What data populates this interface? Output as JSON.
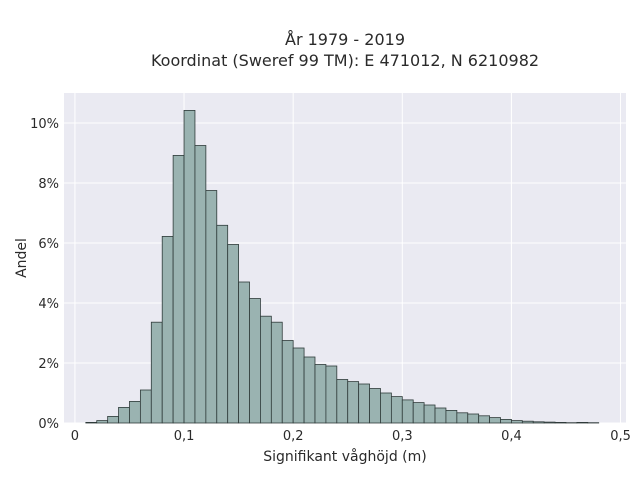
{
  "chart_data": {
    "type": "bar",
    "title": "År 1979 - 2019",
    "subtitle": "Koordinat (Sweref 99 TM): E 471012, N 6210982",
    "xlabel": "Signifikant våghöjd (m)",
    "ylabel": "Andel",
    "xlim": [
      -0.01,
      0.505
    ],
    "ylim": [
      0,
      11.0
    ],
    "x_ticks": [
      0,
      0.1,
      0.2,
      0.3,
      0.4,
      0.5
    ],
    "x_tick_labels": [
      "0",
      "0,1",
      "0,2",
      "0,3",
      "0,4",
      "0,5"
    ],
    "y_ticks": [
      0,
      2,
      4,
      6,
      8,
      10
    ],
    "y_tick_labels": [
      "0%",
      "2%",
      "4%",
      "6%",
      "8%",
      "10%"
    ],
    "grid": true,
    "bin_width": 0.01,
    "bin_starts": [
      0.01,
      0.02,
      0.03,
      0.04,
      0.05,
      0.06,
      0.07,
      0.08,
      0.09,
      0.1,
      0.11,
      0.12,
      0.13,
      0.14,
      0.15,
      0.16,
      0.17,
      0.18,
      0.19,
      0.2,
      0.21,
      0.22,
      0.23,
      0.24,
      0.25,
      0.26,
      0.27,
      0.28,
      0.29,
      0.3,
      0.31,
      0.32,
      0.33,
      0.34,
      0.35,
      0.36,
      0.37,
      0.38,
      0.39,
      0.4,
      0.41,
      0.42,
      0.43,
      0.44,
      0.45,
      0.46,
      0.47,
      0.48
    ],
    "values": [
      0.02,
      0.08,
      0.22,
      0.52,
      0.72,
      1.1,
      3.36,
      6.22,
      8.92,
      10.42,
      9.25,
      7.75,
      6.59,
      5.95,
      4.7,
      4.15,
      3.56,
      3.36,
      2.75,
      2.5,
      2.2,
      1.95,
      1.9,
      1.45,
      1.38,
      1.3,
      1.15,
      1.0,
      0.88,
      0.77,
      0.68,
      0.6,
      0.5,
      0.42,
      0.34,
      0.3,
      0.24,
      0.18,
      0.12,
      0.08,
      0.06,
      0.04,
      0.03,
      0.02,
      0.01,
      0.02,
      0.01,
      0.0
    ],
    "colors": {
      "bar_fill": "#9ab3b1",
      "bar_edge": "#2f3b3a",
      "plot_bg": "#eaeaf2",
      "grid": "#ffffff"
    }
  }
}
